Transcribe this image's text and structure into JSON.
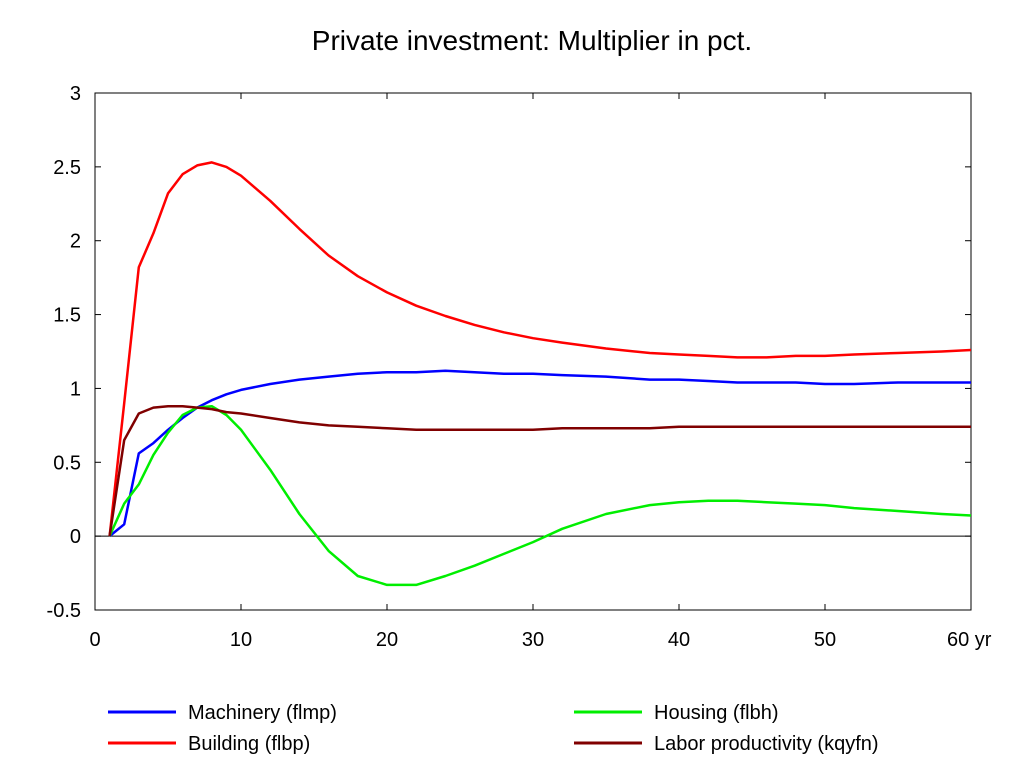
{
  "chart_data": {
    "type": "line",
    "title": "Private investment: Multiplier in pct.",
    "x_tick_labels": [
      "0",
      "10",
      "20",
      "30",
      "40",
      "50",
      "60 yr"
    ],
    "x_ticks": [
      0,
      10,
      20,
      30,
      40,
      50,
      60
    ],
    "y_tick_labels": [
      "3",
      "2.5",
      "2",
      "1.5",
      "1",
      "0.5",
      "0",
      "-0.5"
    ],
    "y_ticks": [
      3,
      2.5,
      2,
      1.5,
      1,
      0.5,
      0,
      -0.5
    ],
    "xlim": [
      0,
      60
    ],
    "ylim": [
      -0.5,
      3
    ],
    "zero_line": true,
    "legend_position": "bottom",
    "x": [
      1,
      2,
      3,
      4,
      5,
      6,
      7,
      8,
      9,
      10,
      12,
      14,
      16,
      18,
      20,
      22,
      24,
      26,
      28,
      30,
      32,
      35,
      38,
      40,
      42,
      44,
      46,
      48,
      50,
      52,
      55,
      58,
      60
    ],
    "series": [
      {
        "name": "Machinery (flmp)",
        "color": "#0000ff",
        "values": [
          0,
          0.08,
          0.56,
          0.63,
          0.72,
          0.8,
          0.87,
          0.92,
          0.96,
          0.99,
          1.03,
          1.06,
          1.08,
          1.1,
          1.11,
          1.11,
          1.12,
          1.11,
          1.1,
          1.1,
          1.09,
          1.08,
          1.06,
          1.06,
          1.05,
          1.04,
          1.04,
          1.04,
          1.03,
          1.03,
          1.04,
          1.04,
          1.04
        ]
      },
      {
        "name": "Building (flbp)",
        "color": "#ff0000",
        "values": [
          0,
          0.9,
          1.82,
          2.05,
          2.32,
          2.45,
          2.51,
          2.53,
          2.5,
          2.44,
          2.27,
          2.08,
          1.9,
          1.76,
          1.65,
          1.56,
          1.49,
          1.43,
          1.38,
          1.34,
          1.31,
          1.27,
          1.24,
          1.23,
          1.22,
          1.21,
          1.21,
          1.22,
          1.22,
          1.23,
          1.24,
          1.25,
          1.26
        ]
      },
      {
        "name": "Housing (flbh)",
        "color": "#00ee00",
        "values": [
          0,
          0.22,
          0.35,
          0.55,
          0.7,
          0.82,
          0.87,
          0.88,
          0.82,
          0.72,
          0.45,
          0.15,
          -0.1,
          -0.27,
          -0.33,
          -0.33,
          -0.27,
          -0.2,
          -0.12,
          -0.04,
          0.05,
          0.15,
          0.21,
          0.23,
          0.24,
          0.24,
          0.23,
          0.22,
          0.21,
          0.19,
          0.17,
          0.15,
          0.14
        ]
      },
      {
        "name": "Labor productivity (kqyfn)",
        "color": "#800000",
        "values": [
          0,
          0.65,
          0.83,
          0.87,
          0.88,
          0.88,
          0.87,
          0.86,
          0.84,
          0.83,
          0.8,
          0.77,
          0.75,
          0.74,
          0.73,
          0.72,
          0.72,
          0.72,
          0.72,
          0.72,
          0.73,
          0.73,
          0.73,
          0.74,
          0.74,
          0.74,
          0.74,
          0.74,
          0.74,
          0.74,
          0.74,
          0.74,
          0.74
        ]
      }
    ]
  }
}
